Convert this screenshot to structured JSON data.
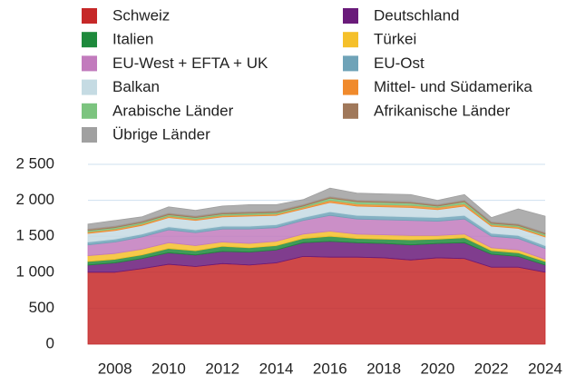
{
  "chart_data": {
    "type": "stacked_area",
    "x": [
      2007,
      2008,
      2009,
      2010,
      2011,
      2012,
      2013,
      2014,
      2015,
      2016,
      2017,
      2018,
      2019,
      2020,
      2021,
      2022,
      2023,
      2024
    ],
    "series": [
      {
        "name": "Schweiz",
        "color": "#c62828",
        "values": [
          1000,
          1000,
          1050,
          1110,
          1080,
          1120,
          1100,
          1130,
          1220,
          1210,
          1210,
          1200,
          1170,
          1200,
          1190,
          1070,
          1070,
          1000
        ]
      },
      {
        "name": "Deutschland",
        "color": "#6a1b7a",
        "values": [
          100,
          130,
          140,
          160,
          160,
          170,
          180,
          180,
          190,
          220,
          200,
          200,
          210,
          200,
          220,
          180,
          150,
          100
        ]
      },
      {
        "name": "Italien",
        "color": "#1e8a3c",
        "values": [
          50,
          50,
          50,
          60,
          60,
          70,
          60,
          60,
          60,
          70,
          60,
          60,
          70,
          60,
          70,
          50,
          50,
          50
        ]
      },
      {
        "name": "Türkei",
        "color": "#f5c02a",
        "values": [
          80,
          80,
          80,
          80,
          70,
          60,
          60,
          60,
          60,
          70,
          60,
          60,
          60,
          50,
          50,
          40,
          40,
          30
        ]
      },
      {
        "name": "EU-West + EFTA + UK",
        "color": "#c27bbd",
        "values": [
          150,
          160,
          170,
          180,
          180,
          180,
          200,
          190,
          190,
          220,
          210,
          210,
          210,
          200,
          210,
          160,
          160,
          150
        ]
      },
      {
        "name": "EU-Ost",
        "color": "#6fa3b8",
        "values": [
          40,
          40,
          40,
          40,
          40,
          40,
          40,
          40,
          40,
          50,
          50,
          50,
          50,
          50,
          50,
          40,
          40,
          40
        ]
      },
      {
        "name": "Balkan",
        "color": "#c5dbe3",
        "values": [
          120,
          120,
          120,
          130,
          130,
          130,
          140,
          130,
          120,
          130,
          130,
          130,
          130,
          110,
          130,
          100,
          100,
          120
        ]
      },
      {
        "name": "Mittel- und Südamerika",
        "color": "#f08a2c",
        "values": [
          20,
          20,
          20,
          20,
          20,
          20,
          20,
          20,
          20,
          30,
          30,
          30,
          30,
          30,
          30,
          20,
          20,
          20
        ]
      },
      {
        "name": "Arabische Länder",
        "color": "#7cc47f",
        "values": [
          20,
          20,
          20,
          20,
          20,
          20,
          20,
          20,
          20,
          30,
          30,
          30,
          30,
          20,
          30,
          20,
          20,
          20
        ]
      },
      {
        "name": "Afrikanische Länder",
        "color": "#a0785a",
        "values": [
          20,
          20,
          20,
          20,
          20,
          20,
          20,
          20,
          20,
          20,
          20,
          20,
          20,
          20,
          20,
          20,
          20,
          20
        ]
      },
      {
        "name": "Übrige Länder",
        "color": "#a0a0a0",
        "values": [
          70,
          80,
          60,
          90,
          80,
          90,
          100,
          90,
          70,
          120,
          100,
          100,
          100,
          60,
          80,
          60,
          210,
          230
        ]
      }
    ],
    "xlim": [
      2007,
      2024
    ],
    "xticks": [
      2008,
      2010,
      2012,
      2014,
      2016,
      2018,
      2020,
      2022,
      2024
    ],
    "ylim": [
      0,
      2500
    ],
    "yticks": [
      0,
      500,
      {
        "value": 1000,
        "label": "1 000"
      },
      {
        "value": 1500,
        "label": "1 500"
      },
      {
        "value": 2000,
        "label": "2 000"
      },
      {
        "value": 2500,
        "label": "2 500"
      }
    ],
    "grid": true
  }
}
